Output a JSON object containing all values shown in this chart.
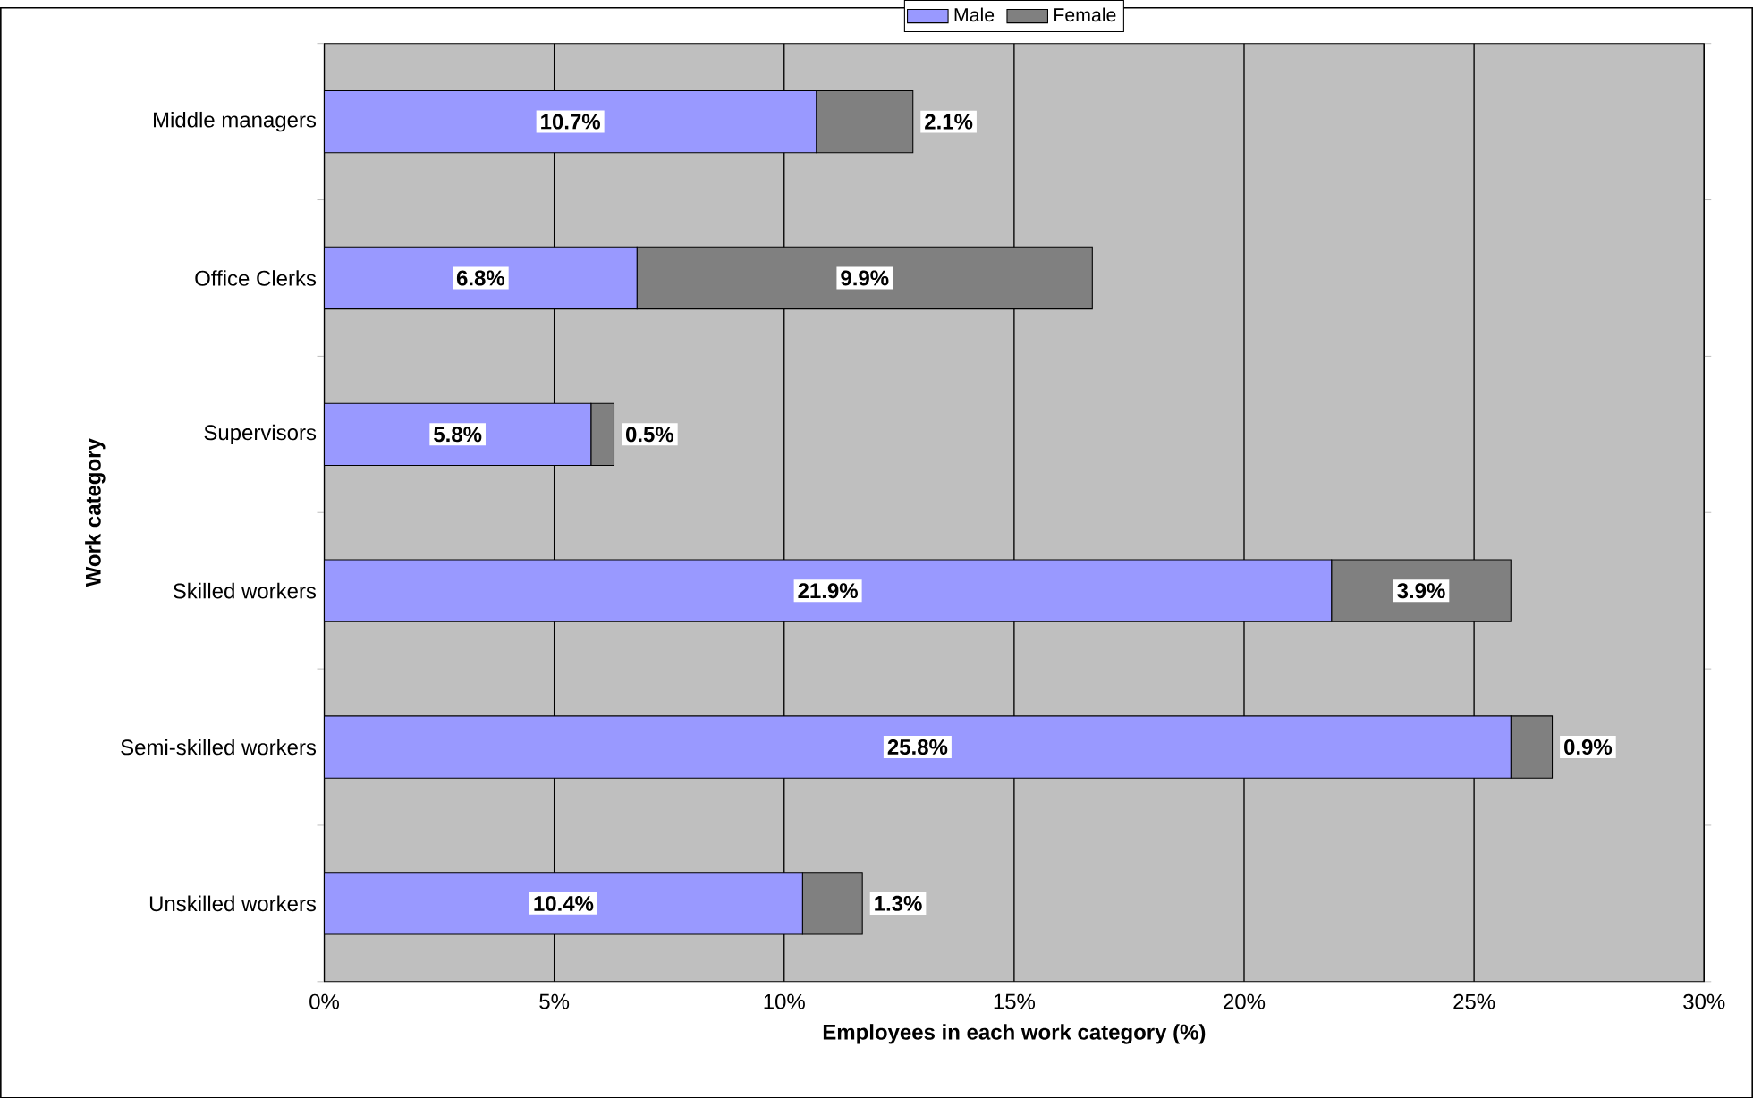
{
  "chart_data": {
    "type": "bar",
    "orientation": "horizontal",
    "stacked": true,
    "xlabel": "Employees in each work category (%)",
    "ylabel": "Work category",
    "categories": [
      "Middle managers",
      "Office Clerks",
      "Supervisors",
      "Skilled workers",
      "Semi-skilled workers",
      "Unskilled workers"
    ],
    "series": [
      {
        "name": "Male",
        "color": "#9999ff",
        "values": [
          10.7,
          6.8,
          5.8,
          21.9,
          25.8,
          10.4
        ],
        "value_labels": [
          "10.7%",
          "6.8%",
          "5.8%",
          "21.9%",
          "25.8%",
          "10.4%"
        ]
      },
      {
        "name": "Female",
        "color": "#808080",
        "values": [
          2.1,
          9.9,
          0.5,
          3.9,
          0.9,
          1.3
        ],
        "value_labels": [
          "2.1%",
          "9.9%",
          "0.5%",
          "3.9%",
          "0.9%",
          "1.3%"
        ]
      }
    ],
    "xlim": [
      0,
      30
    ],
    "xticks": [
      {
        "value": 0,
        "label": "0%"
      },
      {
        "value": 5,
        "label": "5%"
      },
      {
        "value": 10,
        "label": "10%"
      },
      {
        "value": 15,
        "label": "15%"
      },
      {
        "value": 20,
        "label": "20%"
      },
      {
        "value": 25,
        "label": "25%"
      },
      {
        "value": 30,
        "label": "30%"
      }
    ],
    "grid": "x",
    "legend": "top"
  }
}
